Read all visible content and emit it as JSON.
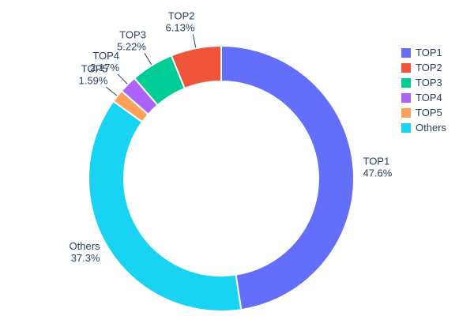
{
  "chart_data": {
    "type": "pie",
    "hole": 0.73,
    "title": "",
    "background": "#ffffff",
    "text_color": "#2a3f5f",
    "direction": "clockwise",
    "start_angle_deg": 0,
    "legend_position": "right",
    "slices": [
      {
        "label": "TOP1",
        "value": 47.6,
        "pct_text": "47.6%",
        "color": "#636EFA"
      },
      {
        "label": "TOP2",
        "value": 6.13,
        "pct_text": "6.13%",
        "color": "#EF553B"
      },
      {
        "label": "TOP3",
        "value": 5.22,
        "pct_text": "5.22%",
        "color": "#00CC96"
      },
      {
        "label": "TOP4",
        "value": 2.17,
        "pct_text": "2.17%",
        "color": "#AB63FA"
      },
      {
        "label": "TOP5",
        "value": 1.59,
        "pct_text": "1.59%",
        "color": "#FFA15A"
      },
      {
        "label": "Others",
        "value": 37.3,
        "pct_text": "37.3%",
        "color": "#19D3F3"
      }
    ],
    "clockwise_order": [
      "TOP1",
      "Others",
      "TOP5",
      "TOP4",
      "TOP3",
      "TOP2"
    ],
    "legend_entries": [
      "TOP1",
      "TOP2",
      "TOP3",
      "TOP4",
      "TOP5",
      "Others"
    ]
  }
}
